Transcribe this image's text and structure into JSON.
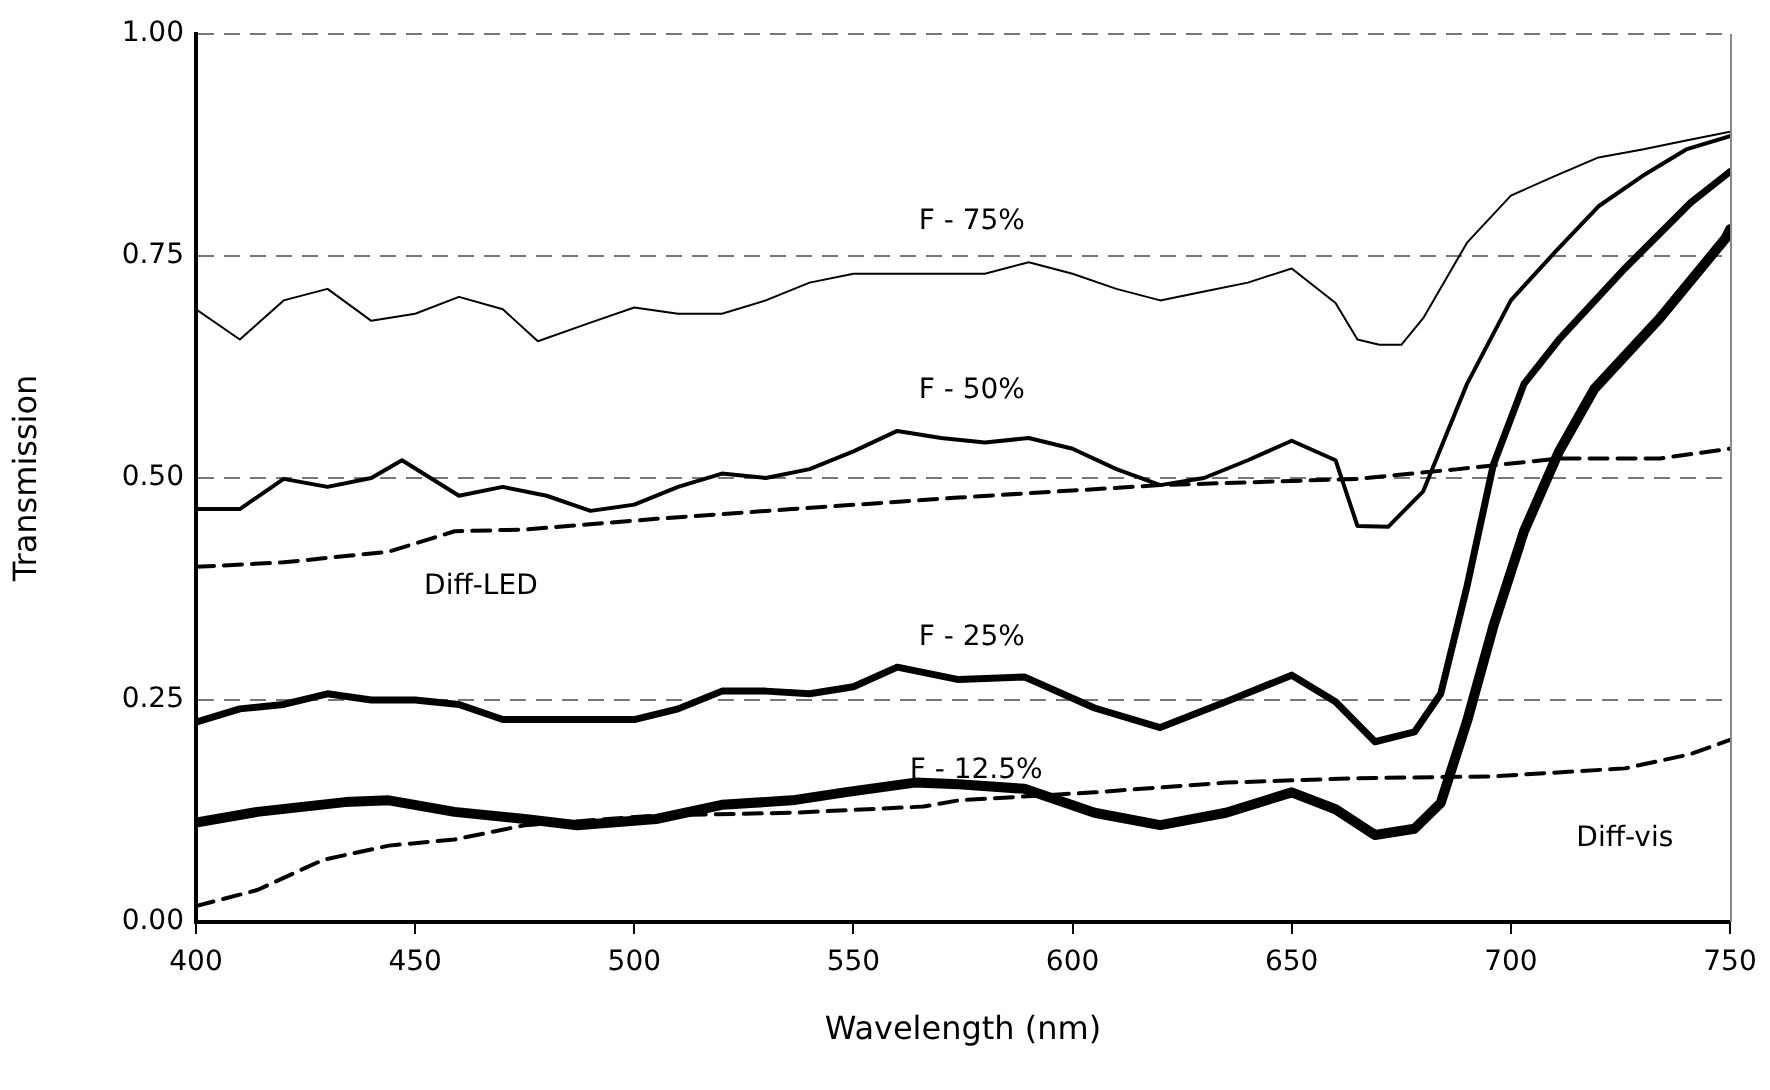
{
  "chart_data": {
    "type": "line",
    "xlabel": "Wavelength (nm)",
    "ylabel": "Transmission",
    "xlim": [
      400,
      750
    ],
    "xticks": [
      400,
      450,
      500,
      550,
      600,
      650,
      700,
      750
    ],
    "ylim": [
      0,
      1
    ],
    "yticks": [
      {
        "value": 0,
        "label": "0.00"
      },
      {
        "value": 0.25,
        "label": "0.25"
      },
      {
        "value": 0.5,
        "label": "0.50"
      },
      {
        "value": 0.75,
        "label": "0.75"
      },
      {
        "value": 1,
        "label": "1.00"
      }
    ],
    "grid": "y",
    "legend": false,
    "marker": "none",
    "series": [
      {
        "name": "F - 75%",
        "color": "#000000",
        "line_style": "solid",
        "x": [
          400,
          410,
          420,
          430,
          440,
          450,
          460,
          470,
          478,
          490,
          500,
          510,
          520,
          530,
          540,
          550,
          560,
          570,
          580,
          590,
          600,
          610,
          620,
          630,
          640,
          650,
          660,
          665,
          670,
          675,
          680,
          690,
          700,
          710,
          720,
          730,
          740,
          750
        ],
        "values": [
          0.69,
          0.656,
          0.7,
          0.713,
          0.677,
          0.685,
          0.704,
          0.69,
          0.654,
          0.675,
          0.692,
          0.685,
          0.685,
          0.7,
          0.72,
          0.73,
          0.73,
          0.73,
          0.73,
          0.743,
          0.73,
          0.713,
          0.7,
          0.71,
          0.72,
          0.736,
          0.697,
          0.656,
          0.65,
          0.65,
          0.68,
          0.765,
          0.818,
          0.84,
          0.861,
          0.87,
          0.88,
          0.89
        ]
      },
      {
        "name": "F - 50%",
        "color": "#000000",
        "line_style": "solid",
        "x": [
          400,
          410,
          420,
          430,
          440,
          447,
          460,
          470,
          480,
          490,
          500,
          510,
          520,
          530,
          540,
          550,
          560,
          570,
          580,
          590,
          600,
          610,
          620,
          630,
          640,
          650,
          660,
          665,
          672,
          680,
          690,
          700,
          710,
          720,
          730,
          740,
          750
        ],
        "values": [
          0.465,
          0.465,
          0.499,
          0.49,
          0.5,
          0.52,
          0.48,
          0.49,
          0.48,
          0.463,
          0.47,
          0.49,
          0.505,
          0.5,
          0.51,
          0.53,
          0.553,
          0.545,
          0.54,
          0.545,
          0.533,
          0.51,
          0.492,
          0.5,
          0.52,
          0.542,
          0.52,
          0.446,
          0.445,
          0.485,
          0.606,
          0.7,
          0.754,
          0.806,
          0.84,
          0.87,
          0.885
        ]
      },
      {
        "name": "F - 25%",
        "color": "#000000",
        "line_style": "solid",
        "x": [
          400,
          410,
          420,
          430,
          440,
          450,
          460,
          470,
          480,
          490,
          500,
          510,
          520,
          530,
          540,
          550,
          560,
          574,
          589,
          605,
          620,
          635,
          650,
          660,
          669,
          678,
          684,
          690,
          696,
          703,
          711,
          726,
          741,
          750
        ],
        "values": [
          0.225,
          0.24,
          0.245,
          0.257,
          0.25,
          0.25,
          0.245,
          0.228,
          0.228,
          0.228,
          0.228,
          0.24,
          0.26,
          0.26,
          0.257,
          0.265,
          0.287,
          0.273,
          0.276,
          0.241,
          0.219,
          0.248,
          0.278,
          0.248,
          0.203,
          0.214,
          0.257,
          0.378,
          0.515,
          0.606,
          0.656,
          0.736,
          0.81,
          0.845
        ]
      },
      {
        "name": "F - 12.5%",
        "color": "#000000",
        "line_style": "solid",
        "x": [
          400,
          414,
          434,
          444,
          459,
          475,
          487,
          505,
          520,
          536,
          548,
          564,
          574,
          589,
          605,
          620,
          635,
          650,
          660,
          669,
          678,
          684,
          690,
          696,
          703,
          711,
          719,
          734,
          749,
          750
        ],
        "values": [
          0.112,
          0.124,
          0.135,
          0.137,
          0.124,
          0.116,
          0.109,
          0.116,
          0.132,
          0.137,
          0.146,
          0.157,
          0.155,
          0.15,
          0.123,
          0.109,
          0.123,
          0.146,
          0.127,
          0.098,
          0.105,
          0.134,
          0.226,
          0.333,
          0.44,
          0.53,
          0.6,
          0.68,
          0.77,
          0.78
        ]
      },
      {
        "name": "Diff-LED",
        "color": "#000000",
        "line_style": "dashed",
        "x": [
          400,
          420,
          444,
          459,
          475,
          505,
          536,
          574,
          620,
          665,
          688,
          711,
          734,
          750
        ],
        "values": [
          0.4,
          0.405,
          0.417,
          0.44,
          0.442,
          0.454,
          0.465,
          0.478,
          0.492,
          0.499,
          0.51,
          0.522,
          0.522,
          0.533
        ]
      },
      {
        "name": "Diff-vis",
        "color": "#000000",
        "line_style": "dashed",
        "x": [
          400,
          414,
          421,
          429,
          444,
          459,
          475,
          505,
          536,
          566,
          574,
          605,
          635,
          665,
          696,
          726,
          741,
          750
        ],
        "values": [
          0.018,
          0.036,
          0.052,
          0.07,
          0.086,
          0.093,
          0.109,
          0.12,
          0.123,
          0.13,
          0.137,
          0.146,
          0.157,
          0.162,
          0.164,
          0.173,
          0.189,
          0.205
        ]
      }
    ]
  }
}
